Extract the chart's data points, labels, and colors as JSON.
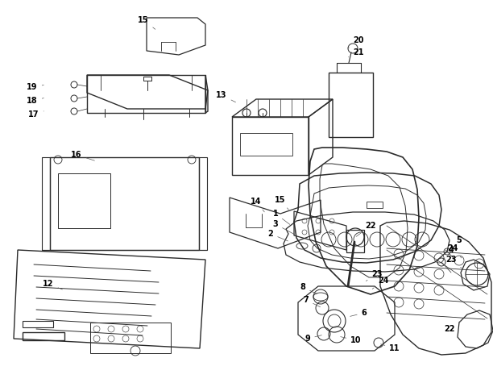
{
  "bg_color": "#ffffff",
  "lc": "#2a2a2a",
  "lw": 0.9,
  "fig_width": 6.12,
  "fig_height": 4.75,
  "dpi": 100,
  "label_fs": 7,
  "label_fw": "bold"
}
